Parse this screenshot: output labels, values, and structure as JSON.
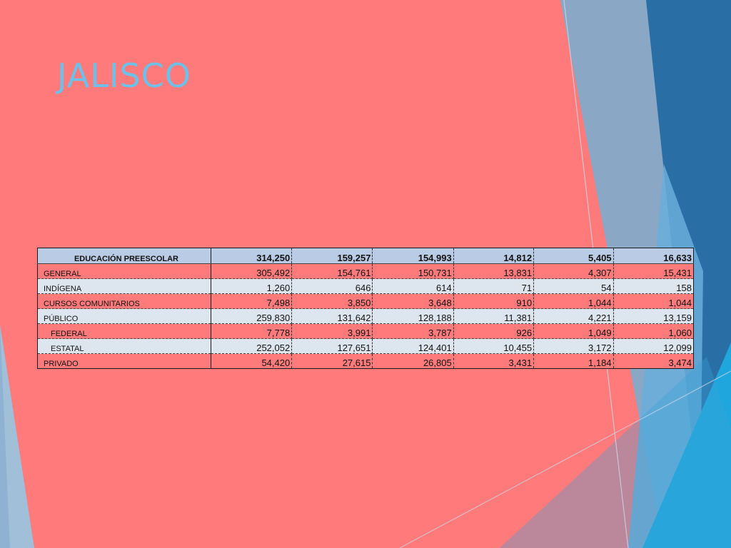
{
  "slide": {
    "title": "JALISCO",
    "colors": {
      "background": "#ff7a7a",
      "title": "#6ec0e8",
      "header_row": "#b9cbe5",
      "light_row": "#dde5ee",
      "decoration_blue": "#2a6ea6"
    }
  },
  "table": {
    "header": {
      "label": "EDUCACIÓN PREESCOLAR",
      "values": [
        "314,250",
        "159,257",
        "154,993",
        "14,812",
        "5,405",
        "16,633"
      ]
    },
    "rows": [
      {
        "label": "GENERAL",
        "values": [
          "305,492",
          "154,761",
          "150,731",
          "13,831",
          "4,307",
          "15,431"
        ]
      },
      {
        "label": "INDÍGENA",
        "values": [
          "1,260",
          "646",
          "614",
          "71",
          "54",
          "158"
        ]
      },
      {
        "label": "CURSOS COMUNITARIOS",
        "values": [
          "7,498",
          "3,850",
          "3,648",
          "910",
          "1,044",
          "1,044"
        ]
      },
      {
        "label": "PÚBLICO",
        "values": [
          "259,830",
          "131,642",
          "128,188",
          "11,381",
          "4,221",
          "13,159"
        ]
      },
      {
        "label": "FEDERAL",
        "values": [
          "7,778",
          "3,991",
          "3,787",
          "926",
          "1,049",
          "1,060"
        ]
      },
      {
        "label": "ESTATAL",
        "values": [
          "252,052",
          "127,651",
          "124,401",
          "10,455",
          "3,172",
          "12,099"
        ]
      },
      {
        "label": "PRIVADO",
        "values": [
          "54,420",
          "27,615",
          "26,805",
          "3,431",
          "1,184",
          "3,474"
        ]
      }
    ]
  }
}
